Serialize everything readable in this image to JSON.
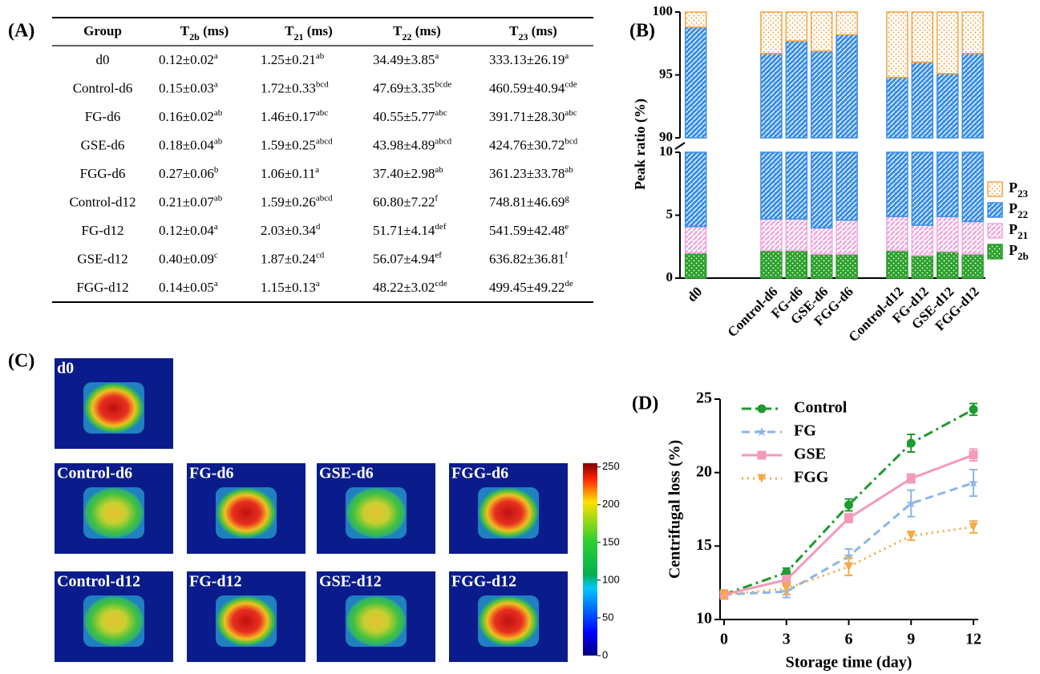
{
  "panel_labels": [
    "(A)",
    "(B)",
    "(C)",
    "(D)"
  ],
  "table": {
    "header": [
      {
        "text": "Group"
      },
      {
        "text": "T",
        "sub": "2b",
        "unit": " (ms)"
      },
      {
        "text": "T",
        "sub": "21",
        "unit": " (ms)"
      },
      {
        "text": "T",
        "sub": "22",
        "unit": " (ms)"
      },
      {
        "text": "T",
        "sub": "23",
        "unit": " (ms)"
      }
    ],
    "rows": [
      [
        {
          "text": "d0"
        },
        {
          "text": "0.12±0.02",
          "sup": "a"
        },
        {
          "text": "1.25±0.21",
          "sup": "ab"
        },
        {
          "text": "34.49±3.85",
          "sup": "a"
        },
        {
          "text": "333.13±26.19",
          "sup": "a"
        }
      ],
      [
        {
          "text": "Control-d6"
        },
        {
          "text": "0.15±0.03",
          "sup": "a"
        },
        {
          "text": "1.72±0.33",
          "sup": "bcd"
        },
        {
          "text": "47.69±3.35",
          "sup": "bcde"
        },
        {
          "text": "460.59±40.94",
          "sup": "cde"
        }
      ],
      [
        {
          "text": "FG-d6"
        },
        {
          "text": "0.16±0.02",
          "sup": "ab"
        },
        {
          "text": "1.46±0.17",
          "sup": "abc"
        },
        {
          "text": "40.55±5.77",
          "sup": "abc"
        },
        {
          "text": "391.71±28.30",
          "sup": "abc"
        }
      ],
      [
        {
          "text": "GSE-d6"
        },
        {
          "text": "0.18±0.04",
          "sup": "ab"
        },
        {
          "text": "1.59±0.25",
          "sup": "abcd"
        },
        {
          "text": "43.98±4.89",
          "sup": "abcd"
        },
        {
          "text": "424.76±30.72",
          "sup": "bcd"
        }
      ],
      [
        {
          "text": "FGG-d6"
        },
        {
          "text": "0.27±0.06",
          "sup": "b"
        },
        {
          "text": "1.06±0.11",
          "sup": "a"
        },
        {
          "text": "37.40±2.98",
          "sup": "ab"
        },
        {
          "text": "361.23±33.78",
          "sup": "ab"
        }
      ],
      [
        {
          "text": "Control-d12"
        },
        {
          "text": "0.21±0.07",
          "sup": "ab"
        },
        {
          "text": "1.59±0.26",
          "sup": "abcd"
        },
        {
          "text": "60.80±7.22",
          "sup": "f"
        },
        {
          "text": "748.81±46.69",
          "sup": "g"
        }
      ],
      [
        {
          "text": "FG-d12"
        },
        {
          "text": "0.12±0.04",
          "sup": "a"
        },
        {
          "text": "2.03±0.34",
          "sup": "d"
        },
        {
          "text": "51.71±4.14",
          "sup": "def"
        },
        {
          "text": "541.59±42.48",
          "sup": "e"
        }
      ],
      [
        {
          "text": "GSE-d12"
        },
        {
          "text": "0.40±0.09",
          "sup": "c"
        },
        {
          "text": "1.87±0.24",
          "sup": "cd"
        },
        {
          "text": "56.07±4.94",
          "sup": "ef"
        },
        {
          "text": "636.82±36.81",
          "sup": "f"
        }
      ],
      [
        {
          "text": "FGG-d12"
        },
        {
          "text": "0.14±0.05",
          "sup": "a"
        },
        {
          "text": "1.15±0.13",
          "sup": "a"
        },
        {
          "text": "48.22±3.02",
          "sup": "cde"
        },
        {
          "text": "499.45±49.22",
          "sup": "de"
        }
      ]
    ]
  },
  "chart_data": [
    {
      "type": "stacked_bar",
      "ylabel": "Peak ratio (%)",
      "categories": [
        "d0",
        null,
        null,
        "Control-d6",
        "FG-d6",
        "GSE-d6",
        "FGG-d6",
        null,
        "Control-d12",
        "FG-d12",
        "GSE-d12",
        "FGG-d12"
      ],
      "ylim_segments": [
        [
          0,
          10
        ],
        [
          90,
          100
        ]
      ],
      "yticks": [
        0,
        5,
        10,
        90,
        95,
        100
      ],
      "legend": "right",
      "series": [
        {
          "name": "P2b",
          "color": "#2ca02c",
          "values": [
            2.0,
            null,
            null,
            2.2,
            2.2,
            1.9,
            1.9,
            null,
            2.2,
            1.8,
            2.1,
            1.9
          ]
        },
        {
          "name": "P21",
          "color": "#f0a8dc",
          "values": [
            2.1,
            null,
            null,
            2.5,
            2.5,
            2.1,
            2.7,
            null,
            2.7,
            2.4,
            2.8,
            2.6
          ]
        },
        {
          "name": "P22",
          "color": "#3a8ee6",
          "values": [
            94.7,
            null,
            null,
            92.0,
            93.0,
            92.9,
            93.6,
            null,
            89.9,
            91.8,
            90.2,
            92.2
          ]
        },
        {
          "name": "P23",
          "color": "#f5a340",
          "values": [
            1.2,
            null,
            null,
            3.3,
            2.3,
            3.1,
            1.8,
            null,
            5.2,
            4.0,
            4.9,
            3.3
          ]
        }
      ]
    },
    {
      "type": "line",
      "xlabel": "Storage time (day)",
      "ylabel": "Centrifugal loss (%)",
      "x": [
        0,
        3,
        6,
        9,
        12
      ],
      "xlim": [
        0,
        12
      ],
      "xticks": [
        0,
        3,
        6,
        9,
        12
      ],
      "ylim": [
        10,
        25
      ],
      "yticks": [
        10,
        15,
        20,
        25
      ],
      "legend": "upper left",
      "series": [
        {
          "name": "Control",
          "color": "#1e9a2e",
          "dash": "dashdot",
          "marker": "circle",
          "values": [
            11.7,
            13.2,
            17.8,
            22.0,
            24.3
          ],
          "errors": [
            0.3,
            0.3,
            0.4,
            0.6,
            0.4
          ]
        },
        {
          "name": "FG",
          "color": "#8bb6ea",
          "dash": "dash",
          "marker": "star",
          "values": [
            11.7,
            11.9,
            14.3,
            17.9,
            19.3
          ],
          "errors": [
            0.3,
            0.4,
            0.5,
            0.9,
            0.9
          ]
        },
        {
          "name": "GSE",
          "color": "#f59ab8",
          "dash": "solid",
          "marker": "square",
          "values": [
            11.7,
            12.7,
            16.9,
            19.6,
            21.2
          ],
          "errors": [
            0.2,
            0.3,
            0.3,
            0.3,
            0.4
          ]
        },
        {
          "name": "FGG",
          "color": "#f5a94a",
          "dash": "dot",
          "marker": "triangle-down",
          "values": [
            11.7,
            12.1,
            13.6,
            15.7,
            16.3
          ],
          "errors": [
            0.3,
            0.4,
            0.6,
            0.3,
            0.4
          ]
        }
      ]
    }
  ],
  "images": {
    "labels": [
      "d0",
      "Control-d6",
      "FG-d6",
      "GSE-d6",
      "FGG-d6",
      "Control-d12",
      "FG-d12",
      "GSE-d12",
      "FGG-d12"
    ],
    "colorbar": {
      "lim": [
        0,
        255
      ],
      "ticks": [
        0,
        50,
        100,
        150,
        200,
        250
      ]
    }
  }
}
